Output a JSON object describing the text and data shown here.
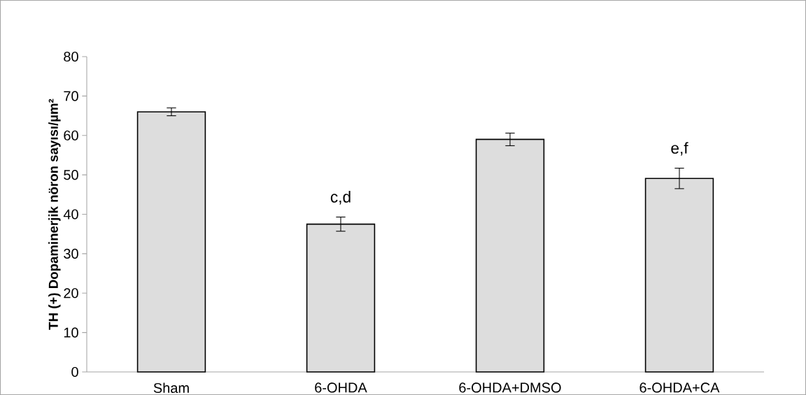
{
  "chart_data": {
    "type": "bar",
    "ylabel": "TH (+) Dopaminerjik nöron sayısı/µm²",
    "categories": [
      "Sham",
      "6-OHDA",
      "6-OHDA+DMSO",
      "6-OHDA+CA"
    ],
    "values": [
      66,
      37.5,
      59,
      49.1
    ],
    "errors": [
      1,
      1.8,
      1.6,
      2.6
    ],
    "color": "#dddddd",
    "ylim": [
      0,
      80
    ],
    "yticks": [
      0,
      10,
      20,
      30,
      40,
      50,
      60,
      70,
      80
    ],
    "annotations": [
      "c,d",
      "e,f"
    ]
  }
}
